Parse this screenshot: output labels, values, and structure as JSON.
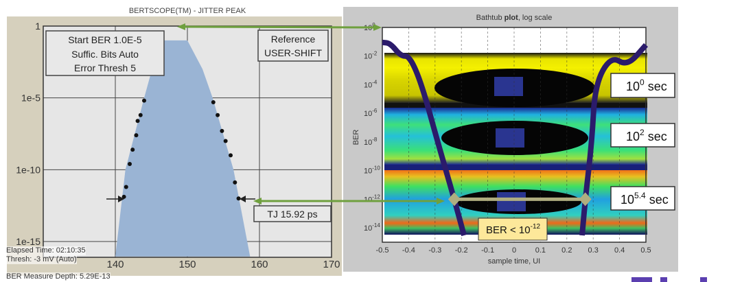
{
  "colors": {
    "area": "#9ab4d4",
    "arrow": "#6fa03e",
    "bathtub": "#2b1b6b",
    "marker": "#b0ae80",
    "annotation_fill": "#fde89a",
    "yellow": "#f4f000",
    "eye_square": "#2a3590"
  },
  "chart_data": [
    {
      "type": "area",
      "title": "BERTSCOPE(TM) - JITTER PEAK",
      "yscale": "log",
      "ylim": [
        1e-15,
        1
      ],
      "xlim": [
        130,
        170
      ],
      "xticks": [
        "140",
        "150",
        "160",
        "170"
      ],
      "yticks": [
        "1",
        "1e-5",
        "1e-10",
        "1e-15"
      ],
      "grid": true,
      "area_boundary": [
        [
          140,
          9e-17
        ],
        [
          141.4,
          1e-10
        ],
        [
          144,
          1e-05
        ],
        [
          145.1,
          0.001
        ],
        [
          146.7,
          0.1
        ],
        [
          150,
          0.1
        ],
        [
          152.1,
          0.001
        ],
        [
          153.5,
          1e-05
        ],
        [
          156.4,
          1e-10
        ],
        [
          158.7,
          9e-17
        ]
      ],
      "series": [
        {
          "x": [
            144.0,
            143.5,
            143.1,
            142.9,
            142.4,
            142.0,
            141.5,
            141.2
          ],
          "y": [
            6.5e-06,
            6.3e-07,
            2.5e-07,
            2.5e-08,
            2.5e-09,
            2.5e-10,
            6.3e-12,
            1.3e-12
          ]
        },
        {
          "x": [
            153.6,
            154.2,
            154.8,
            155.3,
            156.0,
            156.6,
            157.1
          ],
          "y": [
            5e-06,
            6.3e-07,
            5e-08,
            1e-08,
            1e-09,
            1.3e-11,
            1e-12
          ]
        }
      ],
      "annotations": {
        "settings": [
          "Start BER 1.0E-5",
          "Suffic. Bits Auto",
          "Error Thresh 5"
        ],
        "reference": [
          "Reference",
          "USER-SHIFT"
        ],
        "tj": "TJ 15.92 ps"
      },
      "status": {
        "elapsed": "Elapsed Time:  02:10:35",
        "thresh": "Thresh:  -3 mV (Auto)",
        "depth": "BER Measure Depth: 5.29E-13"
      }
    },
    {
      "type": "line",
      "title_prefix": "Bathtub ",
      "title_bold": "plot",
      "title_suffix": ", log scale",
      "xlabel": "sample time, UI",
      "ylabel": "BER",
      "yscale": "log",
      "xlim": [
        -0.5,
        0.5
      ],
      "ylim": [
        1e-15,
        1
      ],
      "xticks": [
        "-0.5",
        "-0.4",
        "-0.3",
        "-0.2",
        "-0.1",
        "0",
        "0.1",
        "0.2",
        "0.3",
        "0.4",
        "0.5"
      ],
      "yticks": [
        {
          "base": "10",
          "exp": "0"
        },
        {
          "base": "10",
          "exp": "-2"
        },
        {
          "base": "10",
          "exp": "-4"
        },
        {
          "base": "10",
          "exp": "-6"
        },
        {
          "base": "10",
          "exp": "-8"
        },
        {
          "base": "10",
          "exp": "-10"
        },
        {
          "base": "10",
          "exp": "-12"
        },
        {
          "base": "10",
          "exp": "-14"
        }
      ],
      "series": [
        {
          "x": [
            -0.5,
            -0.47,
            -0.43,
            -0.396,
            -0.35,
            -0.29,
            -0.227,
            -0.19
          ],
          "y": [
            0.09,
            0.08,
            0.01,
            0.01,
            0.0001,
            1e-08,
            1e-12,
            3e-15
          ]
        },
        {
          "x": [
            0.258,
            0.27,
            0.295,
            0.307,
            0.367,
            0.43,
            0.5
          ],
          "y": [
            3e-15,
            1e-12,
            1e-08,
            0.0001,
            0.01,
            0.002,
            0.06
          ]
        }
      ],
      "marker_line": {
        "x": [
          -0.227,
          0.27
        ],
        "y": 1e-12
      },
      "labels": [
        {
          "base": "10",
          "exp": "0",
          "unit": " sec"
        },
        {
          "base": "10",
          "exp": "2",
          "unit": " sec"
        },
        {
          "base": "10",
          "exp": "5.4",
          "unit": " sec"
        }
      ],
      "ber_label": {
        "text": "BER < 10",
        "exp": "-12"
      }
    }
  ]
}
